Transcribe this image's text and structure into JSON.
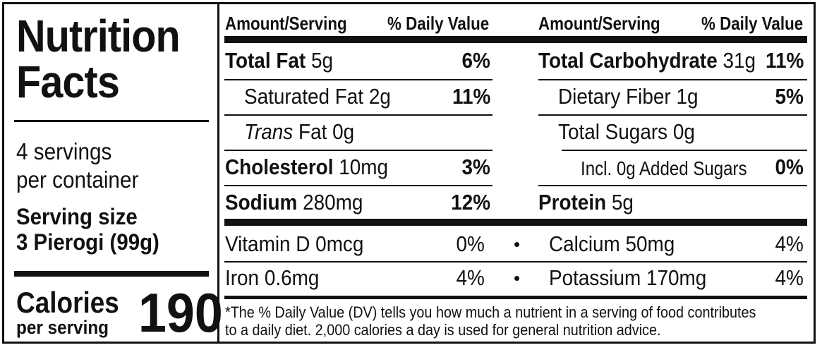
{
  "title_line1": "Nutrition",
  "title_line2": "Facts",
  "servings_line1": "4 servings",
  "servings_line2": "per container",
  "serving_size_label": "Serving size",
  "serving_size_value": "3 Pierogi (99g)",
  "calories_label": "Calories",
  "calories_sub": "per serving",
  "calories_value": "190",
  "headers": {
    "amount_left": "Amount/Serving",
    "dv_left": "% Daily Value",
    "amount_right": "Amount/Serving",
    "dv_right": "% Daily Value"
  },
  "left_rows": [
    {
      "name": "Total Fat",
      "amount": "5g",
      "dv": "6%"
    },
    {
      "name": "Saturated Fat",
      "amount": "2g",
      "dv": "11%"
    },
    {
      "name": "Trans",
      "amount": "Fat 0g",
      "dv": ""
    },
    {
      "name": "Cholesterol",
      "amount": "10mg",
      "dv": "3%"
    },
    {
      "name": "Sodium",
      "amount": "280mg",
      "dv": "12%"
    }
  ],
  "right_rows": [
    {
      "name": "Total Carbohydrate",
      "amount": "31g",
      "dv": "11%"
    },
    {
      "name": "Dietary Fiber",
      "amount": "1g",
      "dv": "5%"
    },
    {
      "name": "Total Sugars",
      "amount": "0g",
      "dv": ""
    },
    {
      "name": "Incl. 0g Added Sugars",
      "amount": "",
      "dv": "0%"
    },
    {
      "name": "Protein",
      "amount": "5g",
      "dv": ""
    }
  ],
  "vitamins": [
    {
      "name": "Vitamin D 0mcg",
      "dv": "0%"
    },
    {
      "name": "Calcium 50mg",
      "dv": "4%"
    },
    {
      "name": "Iron 0.6mg",
      "dv": "4%"
    },
    {
      "name": "Potassium 170mg",
      "dv": "4%"
    }
  ],
  "bullet": "•",
  "footnote_line1": "*The % Daily Value (DV) tells you how much a nutrient in a serving of food contributes",
  "footnote_line2": "to a daily diet. 2,000 calories a day is used for general nutrition advice."
}
